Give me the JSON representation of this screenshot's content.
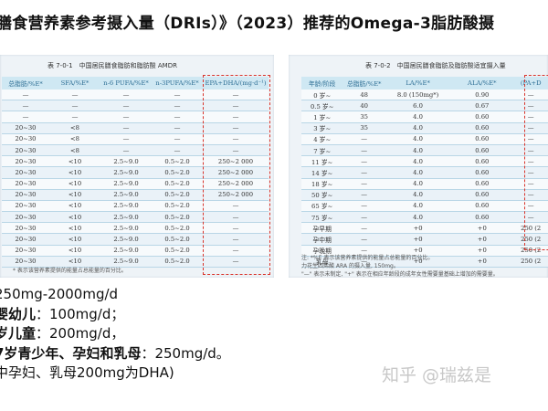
{
  "title": "膳食营养素参考摄入量（DRIs）》（2023）推荐的Omega-3脂肪酸摄",
  "left_panel": {
    "caption": "表 7-0-1　中国居民膳食脂肪和脂肪酸 AMDR",
    "headers": [
      "总脂肪/%E*",
      "SFA/%E*",
      "n-6 PUFA/%E*",
      "n-3PUFA/%E*",
      "EPA+DHA/(mg·d⁻¹)"
    ],
    "rows": [
      [
        "—",
        "—",
        "—",
        "—",
        "—"
      ],
      [
        "—",
        "—",
        "—",
        "—",
        "—"
      ],
      [
        "—",
        "—",
        "—",
        "—",
        "—"
      ],
      [
        "20~30",
        "<8",
        "—",
        "—",
        "—"
      ],
      [
        "20~30",
        "<8",
        "—",
        "—",
        "—"
      ],
      [
        "20~30",
        "<8",
        "—",
        "—",
        "—"
      ],
      [
        "20~30",
        "<10",
        "2.5~9.0",
        "0.5~2.0",
        "250~2 000"
      ],
      [
        "20~30",
        "<10",
        "2.5~9.0",
        "0.5~2.0",
        "250~2 000"
      ],
      [
        "20~30",
        "<10",
        "2.5~9.0",
        "0.5~2.0",
        "250~2 000"
      ],
      [
        "20~30",
        "<10",
        "2.5~9.0",
        "0.5~2.0",
        "250~2 000"
      ],
      [
        "20~30",
        "<10",
        "2.5~9.0",
        "0.5~2.0",
        "—"
      ],
      [
        "20~30",
        "<10",
        "2.5~9.0",
        "0.5~2.0",
        "—"
      ],
      [
        "20~30",
        "<10",
        "2.5~9.0",
        "0.5~2.0",
        "—"
      ],
      [
        "20~30",
        "<10",
        "2.5~9.0",
        "0.5~2.0",
        "—"
      ],
      [
        "20~30",
        "<10",
        "2.5~9.0",
        "0.5~2.0",
        "—"
      ],
      [
        "20~30",
        "<10",
        "2.5~9.0",
        "0.5~2.0",
        "—"
      ]
    ],
    "notes": [
      "* 表示该营养素提供的能量占总能量的百分比。"
    ]
  },
  "right_panel": {
    "caption": "表 7-0-2　中国居民膳食脂肪及脂肪酸适宜摄入量",
    "headers": [
      "年龄/阶段",
      "总脂肪/%E*",
      "LA/%E*",
      "ALA/%E*",
      "(PA+D"
    ],
    "rows": [
      [
        "0 岁~",
        "48",
        "8.0 (150mg*)",
        "0.90",
        "—"
      ],
      [
        "0.5 岁~",
        "40",
        "6.0",
        "0.67",
        "—"
      ],
      [
        "1 岁~",
        "35",
        "4.0",
        "0.60",
        "—"
      ],
      [
        "3 岁~",
        "35",
        "4.0",
        "0.60",
        "—"
      ],
      [
        "4 岁~",
        "—",
        "4.0",
        "0.60",
        "—"
      ],
      [
        "7 岁~",
        "—",
        "4.0",
        "0.60",
        "—"
      ],
      [
        "11 岁~",
        "—",
        "4.0",
        "0.60",
        "—"
      ],
      [
        "14 岁~",
        "—",
        "4.0",
        "0.60",
        "—"
      ],
      [
        "18 岁~",
        "—",
        "4.0",
        "0.60",
        "—"
      ],
      [
        "50 岁~",
        "—",
        "4.0",
        "0.60",
        "—"
      ],
      [
        "65 岁~",
        "—",
        "4.0",
        "0.60",
        "—"
      ],
      [
        "75 岁~",
        "—",
        "4.0",
        "0.60",
        "—"
      ],
      [
        "孕早期",
        "—",
        "+0",
        "+0",
        "250 (2"
      ],
      [
        "孕中期",
        "—",
        "+0",
        "+0",
        "250 (2"
      ],
      [
        "孕晚期",
        "—",
        "+0",
        "+0",
        "250 (2"
      ],
      [
        "乳母",
        "—",
        "+0",
        "+0",
        "250 (2"
      ]
    ],
    "notes": [
      "注: *%E 表示该营养素提供的能量占总能量的百分比。",
      "力花生四烯酸 ARA 的摄入量, 150mg。",
      "\"—\" 表示未制定, \"+\" 表示在相应年龄段的成年女性需要量基础上增加的需要量。"
    ]
  },
  "body": {
    "lines": [
      {
        "prefix": "",
        "bold": "",
        "text": "250mg-2000mg/d"
      },
      {
        "prefix": "",
        "bold": "婴幼儿",
        "text": "：100mg/d；"
      },
      {
        "prefix": "",
        "bold": "岁儿童",
        "text": "：200mg/d，"
      },
      {
        "prefix": "",
        "bold": "7岁青少年、孕妇和乳母",
        "text": "：250mg/d。"
      },
      {
        "prefix": "",
        "bold": "",
        "text": "中孕妇、乳母200mg为DHA)"
      }
    ]
  },
  "watermark": "知乎 @瑞兹是"
}
